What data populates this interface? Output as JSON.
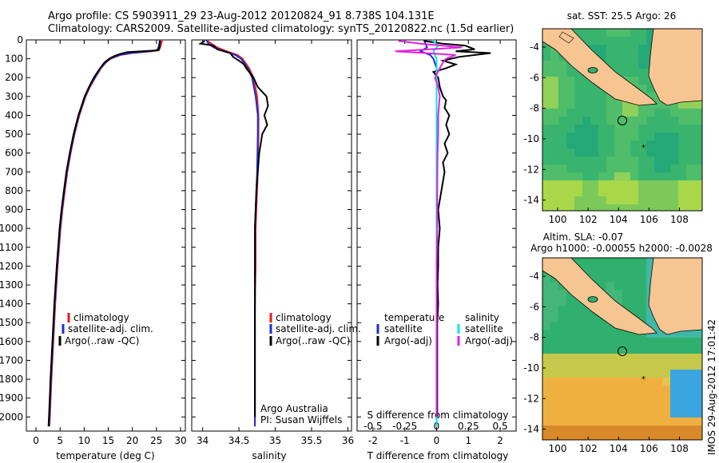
{
  "header": {
    "line1": "Argo profile: CS 5903911_29 23-Aug-2012 20120824_91 8.738S 104.131E",
    "line2": "Climatology: CARS2009. Satellite-adjusted climatology: synTS_20120822.nc (1.5d earlier)"
  },
  "footer_side": "IMOS 29-Aug-2012 17:01:42",
  "colors": {
    "climatology": "#e81c1c",
    "satellite": "#1c2ed8",
    "argo": "#000000",
    "cyan": "#00e5ee",
    "magenta": "#e020e0",
    "ocean_green": "#2fb06e",
    "land": "#f7c592"
  },
  "chart_data": [
    {
      "type": "line",
      "panel": "temperature",
      "xlabel": "temperature (deg C)",
      "ylabel": "",
      "xlim": [
        -2,
        31
      ],
      "ylim": [
        2075,
        0
      ],
      "xticks": [
        0,
        5,
        10,
        15,
        20,
        25,
        30
      ],
      "yticks": [
        0,
        100,
        200,
        300,
        400,
        500,
        600,
        700,
        800,
        900,
        1000,
        1100,
        1200,
        1300,
        1400,
        1500,
        1600,
        1700,
        1800,
        1900,
        2000
      ],
      "legend": [
        "climatology",
        "satellite-adj. clim.",
        "Argo(..raw -QC)"
      ],
      "series": [
        {
          "name": "climatology",
          "color": "#e81c1c",
          "depth": [
            0,
            20,
            40,
            55,
            60,
            70,
            80,
            100,
            120,
            150,
            200,
            250,
            300,
            400,
            500,
            600,
            700,
            800,
            900,
            1000,
            1200,
            1400,
            1600,
            1800,
            2000,
            2050
          ],
          "values": [
            26.2,
            26.0,
            25.8,
            25.5,
            24,
            20,
            17.5,
            15.5,
            14.5,
            13.5,
            12.3,
            11.2,
            10.3,
            9.0,
            8.0,
            7.2,
            6.5,
            6.0,
            5.5,
            5.1,
            4.5,
            4.0,
            3.6,
            3.2,
            2.9,
            2.8
          ]
        },
        {
          "name": "satellite-adj. clim.",
          "color": "#1c2ed8",
          "depth": [
            0,
            20,
            40,
            55,
            60,
            70,
            80,
            100,
            120,
            150,
            200,
            250,
            300,
            400,
            500,
            600,
            700,
            800,
            900,
            1000,
            1200,
            1400,
            1600,
            1800,
            2000,
            2050
          ],
          "values": [
            25.7,
            25.6,
            25.4,
            25.1,
            23.5,
            19.5,
            17.2,
            15.4,
            14.4,
            13.4,
            12.2,
            11.1,
            10.2,
            8.9,
            7.9,
            7.1,
            6.4,
            5.9,
            5.4,
            5.0,
            4.4,
            3.9,
            3.5,
            3.1,
            2.8,
            2.7
          ]
        },
        {
          "name": "Argo(..raw -QC)",
          "color": "#000000",
          "depth": [
            5,
            20,
            40,
            55,
            60,
            65,
            75,
            85,
            100,
            120,
            150,
            200,
            250,
            300,
            400,
            500,
            600,
            700,
            800,
            900,
            1000,
            1200,
            1400,
            1600,
            1800,
            2000,
            2050
          ],
          "values": [
            25.8,
            25.7,
            25.6,
            25.4,
            22,
            19,
            17.4,
            16.3,
            15.2,
            14.2,
            13.3,
            12.0,
            11.0,
            10.1,
            8.8,
            7.8,
            7.0,
            6.3,
            5.8,
            5.3,
            4.9,
            4.3,
            3.8,
            3.4,
            3.0,
            2.7,
            2.6
          ]
        }
      ]
    },
    {
      "type": "line",
      "panel": "salinity",
      "xlabel": "salinity",
      "xlim": [
        33.85,
        36.05
      ],
      "ylim": [
        2075,
        0
      ],
      "xticks": [
        34,
        34.5,
        35,
        35.5,
        36
      ],
      "legend": [
        "climatology",
        "satellite-adj. clim.",
        "Argo(..raw -QC)"
      ],
      "annotation": [
        "Argo Australia",
        "PI: Susan Wijffels"
      ],
      "series": [
        {
          "name": "climatology",
          "color": "#e81c1c",
          "depth": [
            0,
            20,
            40,
            60,
            80,
            100,
            150,
            200,
            300,
            400,
            500,
            700,
            900,
            1000,
            1200,
            1400,
            1600,
            1800,
            2000,
            2050
          ],
          "values": [
            34.05,
            34.12,
            34.2,
            34.33,
            34.48,
            34.55,
            34.64,
            34.7,
            34.75,
            34.77,
            34.77,
            34.76,
            34.74,
            34.73,
            34.73,
            34.72,
            34.72,
            34.72,
            34.72,
            34.72
          ]
        },
        {
          "name": "satellite-adj. clim.",
          "color": "#1c2ed8",
          "depth": [
            0,
            20,
            40,
            60,
            80,
            100,
            150,
            200,
            300,
            400,
            500,
            700,
            900,
            1000,
            1200,
            1400,
            1600,
            1800,
            2000,
            2050
          ],
          "values": [
            34.05,
            34.08,
            34.15,
            34.3,
            34.45,
            34.53,
            34.62,
            34.68,
            34.73,
            34.76,
            34.76,
            34.75,
            34.73,
            34.72,
            34.72,
            34.72,
            34.72,
            34.72,
            34.72,
            34.72
          ]
        },
        {
          "name": "Argo(..raw -QC)",
          "color": "#000000",
          "depth": [
            5,
            20,
            30,
            50,
            70,
            90,
            110,
            130,
            150,
            180,
            200,
            250,
            300,
            350,
            400,
            450,
            500,
            550,
            600,
            700,
            800,
            900,
            1000,
            1100,
            1200,
            1400,
            1600,
            1800,
            2000
          ],
          "values": [
            34.03,
            33.97,
            34.15,
            34.2,
            34.38,
            34.42,
            34.5,
            34.57,
            34.6,
            34.66,
            34.7,
            34.76,
            34.88,
            34.9,
            34.85,
            34.89,
            34.82,
            34.8,
            34.78,
            34.76,
            34.74,
            34.73,
            34.72,
            34.72,
            34.72,
            34.72,
            34.72,
            34.72,
            34.72
          ]
        }
      ]
    },
    {
      "type": "line",
      "panel": "differences",
      "xlabel": "T difference from climatology",
      "x2label": "S difference from climatology",
      "xlim": [
        -2.5,
        2.5
      ],
      "ylim": [
        2075,
        0
      ],
      "xticks": [
        -2,
        -1,
        0,
        1,
        2
      ],
      "x2ticks": [
        "-0.5",
        "-0.25",
        "0",
        "0.25",
        "0.5"
      ],
      "legend_left_title": "temperature",
      "legend_right_title": "salinity",
      "legend_left": [
        "satellite",
        "Argo(-adj)"
      ],
      "legend_right": [
        "satellite",
        "Argo(-adj)"
      ],
      "series": [
        {
          "name": "temperature satellite",
          "color": "#1c2ed8",
          "depth": [
            0,
            40,
            60,
            80,
            100,
            150,
            300,
            2050
          ],
          "values": [
            -0.4,
            -0.3,
            -0.5,
            -0.2,
            -0.1,
            0,
            0,
            0
          ]
        },
        {
          "name": "temperature Argo(-adj)",
          "color": "#000000",
          "depth": [
            5,
            20,
            30,
            50,
            60,
            70,
            90,
            110,
            130,
            150,
            170,
            200,
            250,
            300,
            320,
            360,
            400,
            450,
            500,
            550,
            600,
            650,
            700,
            800,
            900,
            1000,
            1100,
            1200,
            1300,
            1400,
            1500,
            1600,
            1700,
            1800,
            1900,
            2000
          ],
          "values": [
            -0.4,
            0.2,
            0.9,
            1.2,
            0.6,
            1.7,
            0.7,
            0.2,
            0.6,
            0.3,
            -0.1,
            0.05,
            0.1,
            0.2,
            0.3,
            0.25,
            0.4,
            0.3,
            0.4,
            0.25,
            0.35,
            0.2,
            0.25,
            0.15,
            0.05,
            0.1,
            0.05,
            0.05,
            0.03,
            0.05,
            0.02,
            0.02,
            0.02,
            0.02,
            0.02,
            0.02
          ]
        },
        {
          "name": "salinity satellite",
          "color": "#00e5ee",
          "depth": [
            0,
            30,
            60,
            100,
            200,
            2050
          ],
          "values": [
            -0.15,
            0.05,
            -0.1,
            0,
            0,
            0
          ]
        },
        {
          "name": "salinity Argo(-adj)",
          "color": "#e020e0",
          "depth": [
            5,
            20,
            40,
            60,
            80,
            100,
            120,
            150,
            200,
            250,
            300,
            400,
            500,
            600,
            800,
            1000,
            1200,
            1400,
            1600,
            2000
          ],
          "values": [
            -1.2,
            -0.5,
            0.8,
            -1.3,
            0.6,
            0.3,
            0.2,
            0.1,
            -0.05,
            0.05,
            0.1,
            0.05,
            0.05,
            0.03,
            0.02,
            0.02,
            0.0,
            0.0,
            0.0,
            0.0
          ]
        }
      ]
    },
    {
      "type": "heatmap",
      "panel": "sat-sst-map",
      "title": "sat. SST: 25.5 Argo: 26",
      "xticks": [
        100,
        102,
        104,
        106,
        108
      ],
      "yticks": [
        -4,
        -6,
        -8,
        -10,
        -12,
        -14
      ],
      "xlim": [
        99,
        109.5
      ],
      "ylim": [
        -14.7,
        -2.8
      ]
    },
    {
      "type": "heatmap",
      "panel": "sla-map",
      "title": "Altim. SLA: -0.07",
      "subtitle": "Argo h1000: -0.00055 h2000: -0.0028",
      "xticks": [
        100,
        102,
        104,
        106,
        108
      ],
      "yticks": [
        -4,
        -6,
        -8,
        -10,
        -12,
        -14
      ],
      "xlim": [
        99,
        109.5
      ],
      "ylim": [
        -14.7,
        -2.8
      ]
    }
  ]
}
